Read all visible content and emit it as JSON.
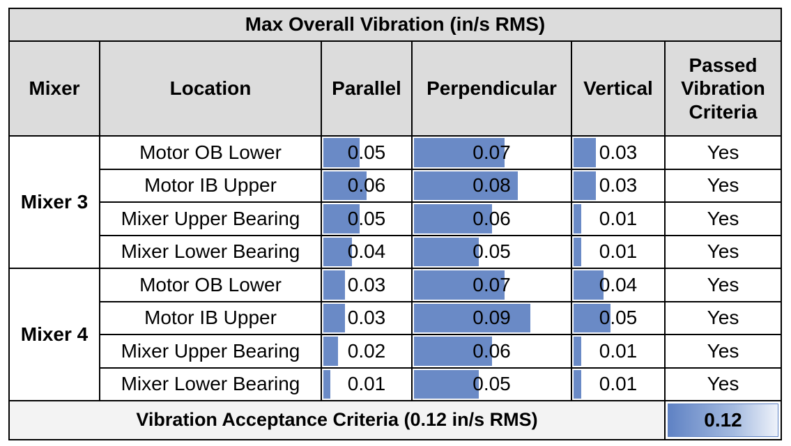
{
  "title": "Max Overall Vibration (in/s RMS)",
  "headers": {
    "mixer": "Mixer",
    "location": "Location",
    "parallel": "Parallel",
    "perpendicular": "Perpendicular",
    "vertical": "Vertical",
    "passed_1": "Passed",
    "passed_2": "Vibration",
    "passed_3": "Criteria"
  },
  "bar_scale_max": 0.12,
  "groups": [
    {
      "mixer": "Mixer 3",
      "rows": [
        {
          "location": "Motor OB Lower",
          "parallel": "0.05",
          "perpendicular": "0.07",
          "vertical": "0.03",
          "passed": "Yes"
        },
        {
          "location": "Motor IB Upper",
          "parallel": "0.06",
          "perpendicular": "0.08",
          "vertical": "0.03",
          "passed": "Yes"
        },
        {
          "location": "Mixer Upper Bearing",
          "parallel": "0.05",
          "perpendicular": "0.06",
          "vertical": "0.01",
          "passed": "Yes"
        },
        {
          "location": "Mixer Lower Bearing",
          "parallel": "0.04",
          "perpendicular": "0.05",
          "vertical": "0.01",
          "passed": "Yes"
        }
      ]
    },
    {
      "mixer": "Mixer 4",
      "rows": [
        {
          "location": "Motor OB Lower",
          "parallel": "0.03",
          "perpendicular": "0.07",
          "vertical": "0.04",
          "passed": "Yes"
        },
        {
          "location": "Motor IB Upper",
          "parallel": "0.03",
          "perpendicular": "0.09",
          "vertical": "0.05",
          "passed": "Yes"
        },
        {
          "location": "Mixer Upper Bearing",
          "parallel": "0.02",
          "perpendicular": "0.06",
          "vertical": "0.01",
          "passed": "Yes"
        },
        {
          "location": "Mixer Lower Bearing",
          "parallel": "0.01",
          "perpendicular": "0.05",
          "vertical": "0.01",
          "passed": "Yes"
        }
      ]
    }
  ],
  "footer": {
    "label": "Vibration Acceptance Criteria (0.12 in/s RMS)",
    "value": "0.12"
  },
  "colors": {
    "header_bg": "#dcdcdc",
    "bar_fill": "#6a8ac6",
    "border": "#000000"
  }
}
